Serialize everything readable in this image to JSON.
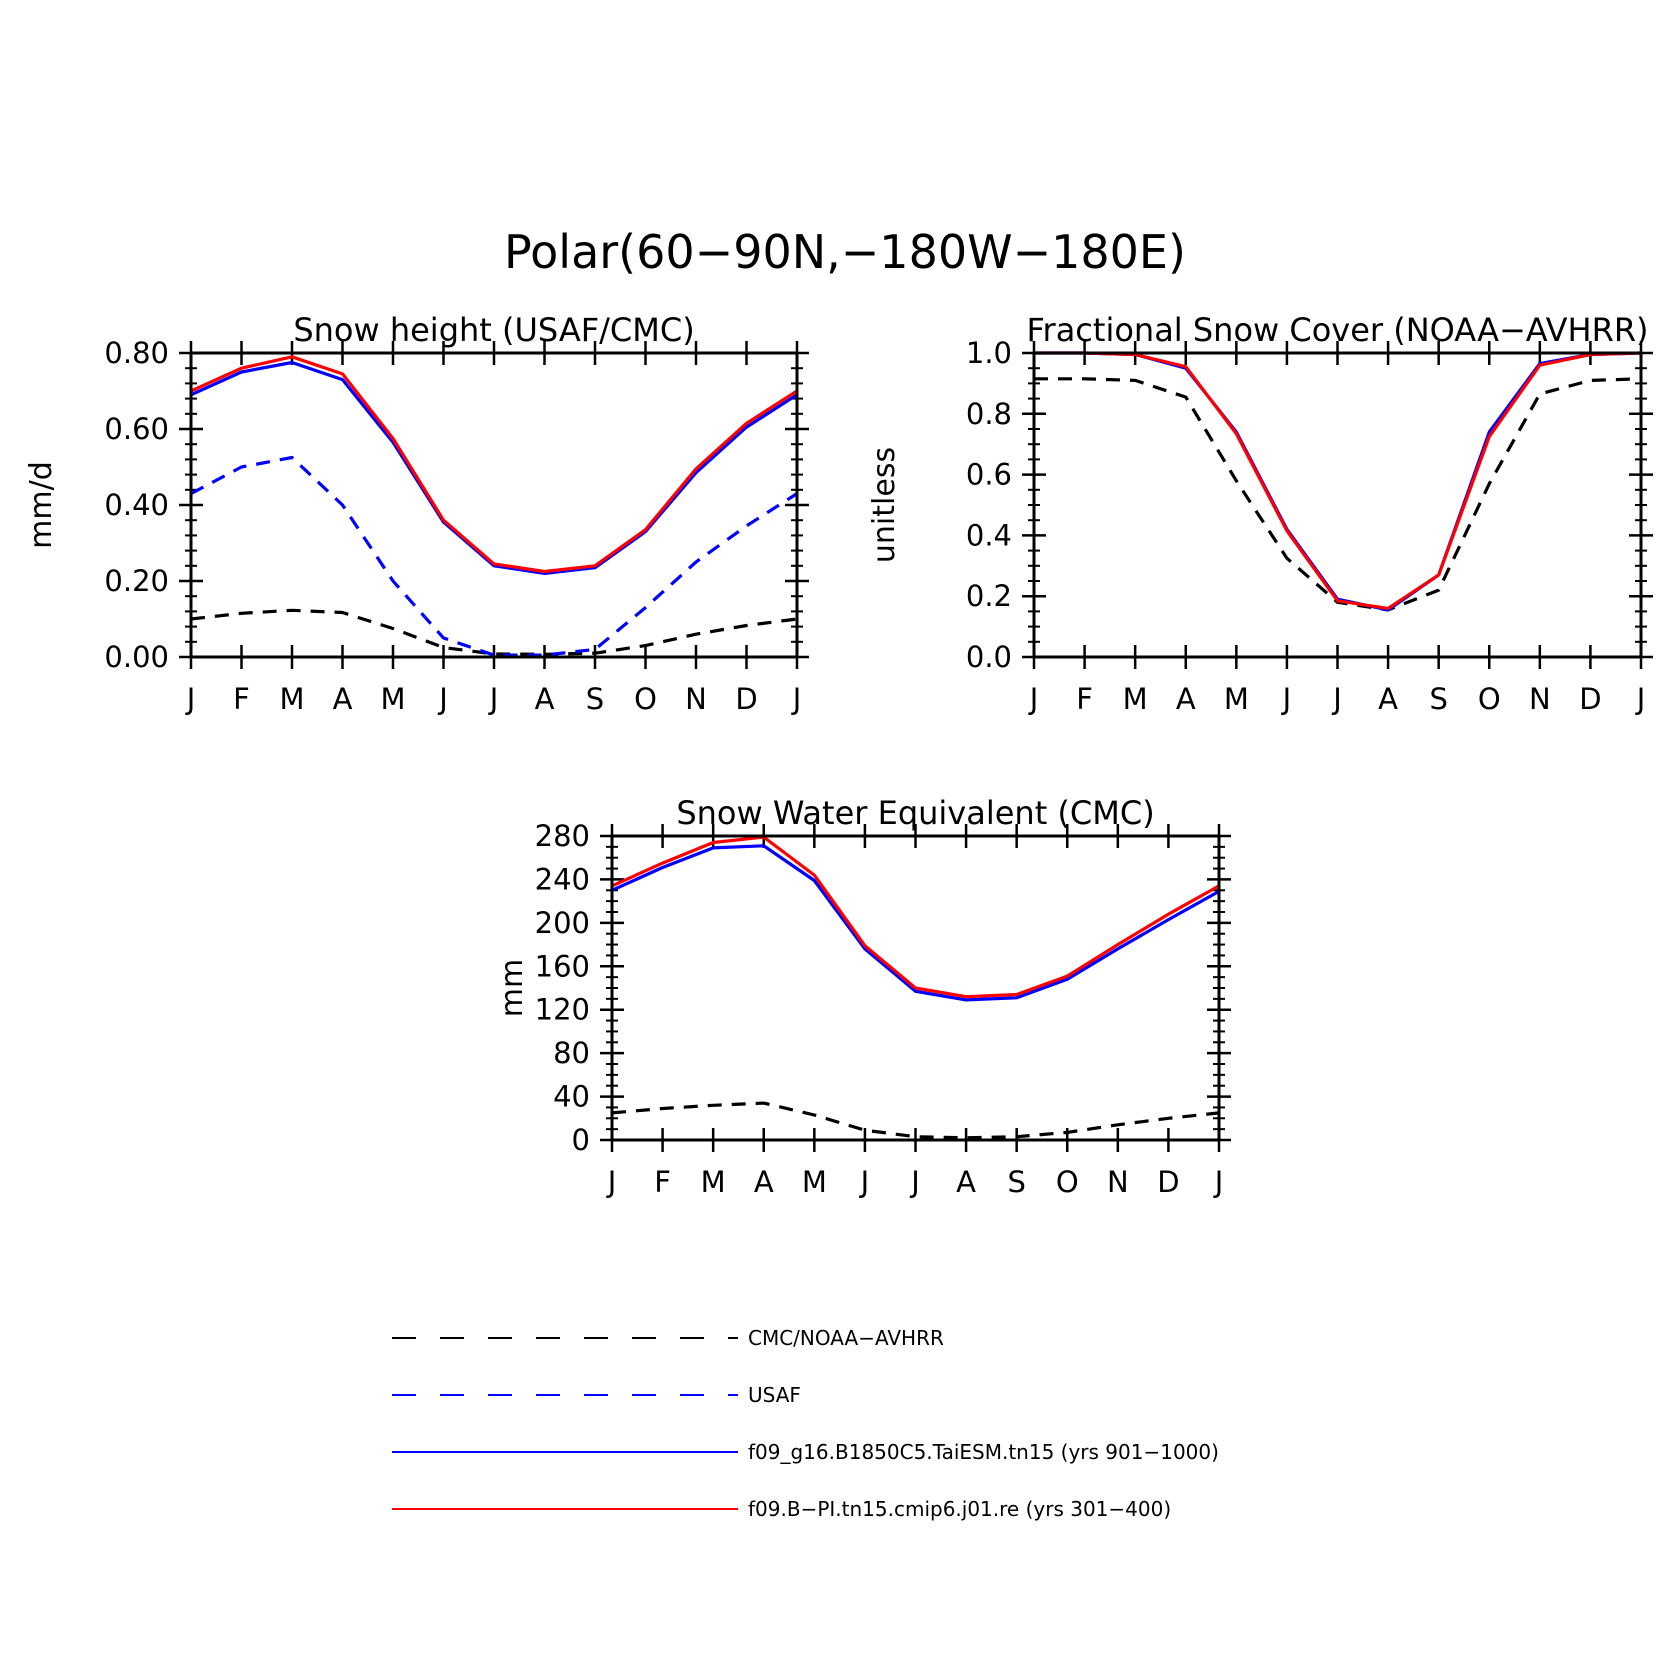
{
  "figure": {
    "title": "Polar(60−90N,−180W−180E)"
  },
  "legend": [
    {
      "label": "CMC/NOAA−AVHRR",
      "color": "#000000",
      "dash": "dashed"
    },
    {
      "label": "USAF",
      "color": "#0000ff",
      "dash": "dashed"
    },
    {
      "label": "f09_g16.B1850C5.TaiESM.tn15 (yrs 901−1000)",
      "color": "#0000ff",
      "dash": "solid"
    },
    {
      "label": "f09.B−PI.tn15.cmip6.j01.re (yrs 301−400)",
      "color": "#ff0000",
      "dash": "solid"
    }
  ],
  "chart_data": [
    {
      "type": "line",
      "title": "Snow height (USAF/CMC)",
      "xlabel": "",
      "ylabel": "mm/d",
      "categories": [
        "J",
        "F",
        "M",
        "A",
        "M",
        "J",
        "J",
        "A",
        "S",
        "O",
        "N",
        "D",
        "J"
      ],
      "ylim": [
        0,
        0.8
      ],
      "yticks": [
        "0.00",
        "0.20",
        "0.40",
        "0.60",
        "0.80"
      ],
      "grid": false,
      "series": [
        {
          "name": "CMC/NOAA−AVHRR",
          "values": [
            0.1,
            0.115,
            0.123,
            0.117,
            0.075,
            0.025,
            0.008,
            0.007,
            0.01,
            0.03,
            0.06,
            0.083,
            0.1
          ]
        },
        {
          "name": "USAF",
          "values": [
            0.43,
            0.5,
            0.525,
            0.4,
            0.2,
            0.05,
            0.005,
            0.005,
            0.02,
            0.13,
            0.25,
            0.345,
            0.43
          ]
        },
        {
          "name": "f09_g16.B1850C5.TaiESM.tn15 (yrs 901−1000)",
          "values": [
            0.69,
            0.75,
            0.775,
            0.73,
            0.565,
            0.355,
            0.24,
            0.22,
            0.235,
            0.33,
            0.485,
            0.605,
            0.69
          ]
        },
        {
          "name": "f09.B−PI.tn15.cmip6.j01.re (yrs 301−400)",
          "values": [
            0.7,
            0.76,
            0.79,
            0.745,
            0.575,
            0.36,
            0.245,
            0.225,
            0.24,
            0.335,
            0.495,
            0.615,
            0.7
          ]
        }
      ]
    },
    {
      "type": "line",
      "title": "Fractional Snow Cover (NOAA−AVHRR)",
      "xlabel": "",
      "ylabel": "unitless",
      "categories": [
        "J",
        "F",
        "M",
        "A",
        "M",
        "J",
        "J",
        "A",
        "S",
        "O",
        "N",
        "D",
        "J"
      ],
      "ylim": [
        0,
        1.0
      ],
      "yticks": [
        "0.0",
        "0.2",
        "0.4",
        "0.6",
        "0.8",
        "1.0"
      ],
      "grid": false,
      "series": [
        {
          "name": "CMC/NOAA−AVHRR",
          "values": [
            0.915,
            0.915,
            0.91,
            0.855,
            0.58,
            0.325,
            0.18,
            0.155,
            0.22,
            0.57,
            0.865,
            0.91,
            0.915
          ]
        },
        {
          "name": "f09_g16.B1850C5.TaiESM.tn15 (yrs 901−1000)",
          "values": [
            1.0,
            1.0,
            0.995,
            0.95,
            0.74,
            0.42,
            0.19,
            0.155,
            0.27,
            0.74,
            0.965,
            0.995,
            1.0
          ]
        },
        {
          "name": "f09.B−PI.tn15.cmip6.j01.re (yrs 301−400)",
          "values": [
            1.0,
            1.0,
            0.995,
            0.955,
            0.735,
            0.415,
            0.185,
            0.16,
            0.27,
            0.725,
            0.96,
            0.995,
            1.0
          ]
        }
      ]
    },
    {
      "type": "line",
      "title": "Snow Water Equivalent (CMC)",
      "xlabel": "",
      "ylabel": "mm",
      "categories": [
        "J",
        "F",
        "M",
        "A",
        "M",
        "J",
        "J",
        "A",
        "S",
        "O",
        "N",
        "D",
        "J"
      ],
      "ylim": [
        0,
        280
      ],
      "yticks": [
        "0",
        "40",
        "80",
        "120",
        "160",
        "200",
        "240",
        "280"
      ],
      "grid": false,
      "series": [
        {
          "name": "CMC/NOAA−AVHRR",
          "values": [
            25,
            29,
            32,
            34,
            23,
            9,
            3,
            2,
            3,
            7,
            14,
            20,
            25
          ]
        },
        {
          "name": "f09_g16.B1850C5.TaiESM.tn15 (yrs 901−1000)",
          "values": [
            230,
            251,
            269,
            271,
            239,
            176,
            137,
            129,
            131,
            148,
            176,
            203,
            229
          ]
        },
        {
          "name": "f09.B−PI.tn15.cmip6.j01.re (yrs 301−400)",
          "values": [
            234,
            255,
            274,
            279,
            244,
            179,
            140,
            132,
            134,
            151,
            180,
            208,
            234
          ]
        }
      ]
    }
  ]
}
